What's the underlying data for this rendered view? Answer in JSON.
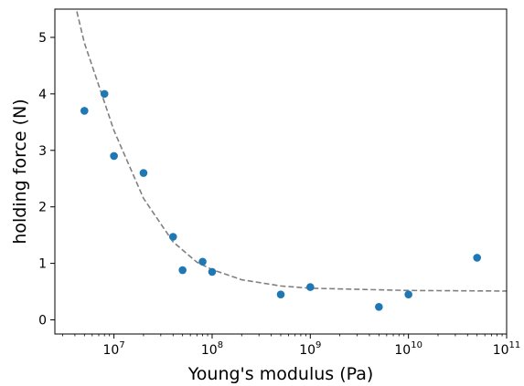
{
  "chart_data": {
    "type": "scatter",
    "xlabel": "Young's modulus (Pa)",
    "ylabel": "holding force (N)",
    "x_scale": "log",
    "xlim": [
      2500000.0,
      100000000000.0
    ],
    "ylim": [
      -0.25,
      5.5
    ],
    "grid": false,
    "x_ticks": [
      {
        "value": 10000000.0,
        "base": "10",
        "exp": "7"
      },
      {
        "value": 100000000.0,
        "base": "10",
        "exp": "8"
      },
      {
        "value": 1000000000.0,
        "base": "10",
        "exp": "9"
      },
      {
        "value": 10000000000.0,
        "base": "10",
        "exp": "10"
      },
      {
        "value": 100000000000.0,
        "base": "10",
        "exp": "11"
      }
    ],
    "y_ticks": [
      {
        "value": 0,
        "label": "0"
      },
      {
        "value": 1,
        "label": "1"
      },
      {
        "value": 2,
        "label": "2"
      },
      {
        "value": 3,
        "label": "3"
      },
      {
        "value": 4,
        "label": "4"
      },
      {
        "value": 5,
        "label": "5"
      }
    ],
    "series": [
      {
        "color": "#1f77b4",
        "points": [
          {
            "x": 5000000.0,
            "y": 3.7
          },
          {
            "x": 8000000.0,
            "y": 4.0
          },
          {
            "x": 10000000.0,
            "y": 2.9
          },
          {
            "x": 20000000.0,
            "y": 2.6
          },
          {
            "x": 40000000.0,
            "y": 1.47
          },
          {
            "x": 50000000.0,
            "y": 0.88
          },
          {
            "x": 80000000.0,
            "y": 1.03
          },
          {
            "x": 100000000.0,
            "y": 0.85
          },
          {
            "x": 500000000.0,
            "y": 0.45
          },
          {
            "x": 1000000000.0,
            "y": 0.58
          },
          {
            "x": 5000000000.0,
            "y": 0.23
          },
          {
            "x": 10000000000.0,
            "y": 0.45
          },
          {
            "x": 50000000000.0,
            "y": 1.1
          }
        ]
      }
    ],
    "fit_curve": {
      "style": "dashed",
      "color": "#808080",
      "points": [
        {
          "x": 4000000.0,
          "y": 5.6
        },
        {
          "x": 5000000.0,
          "y": 4.9
        },
        {
          "x": 7000000.0,
          "y": 4.15
        },
        {
          "x": 10000000.0,
          "y": 3.35
        },
        {
          "x": 20000000.0,
          "y": 2.15
        },
        {
          "x": 40000000.0,
          "y": 1.38
        },
        {
          "x": 70000000.0,
          "y": 1.02
        },
        {
          "x": 100000000.0,
          "y": 0.89
        },
        {
          "x": 200000000.0,
          "y": 0.71
        },
        {
          "x": 500000000.0,
          "y": 0.6
        },
        {
          "x": 1000000000.0,
          "y": 0.56
        },
        {
          "x": 10000000000.0,
          "y": 0.52
        },
        {
          "x": 100000000000.0,
          "y": 0.51
        }
      ]
    }
  }
}
